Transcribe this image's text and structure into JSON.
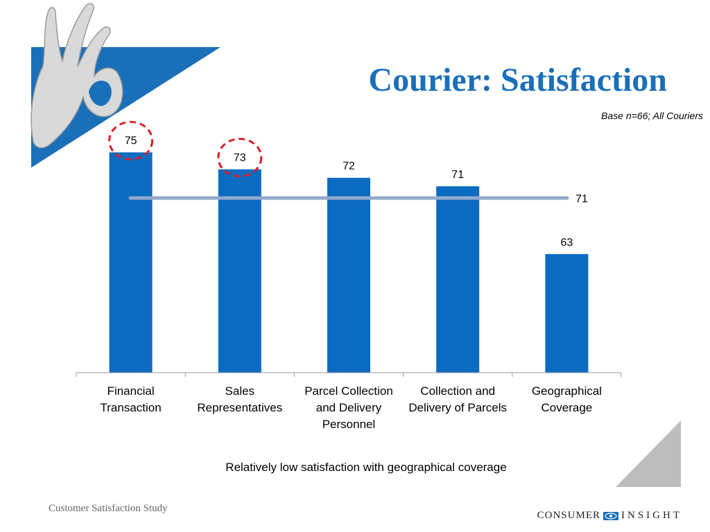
{
  "slide": {
    "title": "Courier: Satisfaction",
    "base_note": "Base n=66; All Couriers",
    "caption": "Relatively low satisfaction with geographical coverage",
    "footer_left": "Customer Satisfaction Study",
    "logo": {
      "word1": "CONSUMER",
      "word2": "INSIGHT",
      "icon": "eye-icon"
    },
    "decoration": {
      "hand_icon": "ok-hand-gesture-icon",
      "corner_icon": "grey-corner-triangle"
    }
  },
  "colors": {
    "bar": "#0b6bc1",
    "average_line": "#93a9cb",
    "title": "#1a6fb9",
    "highlight_circle": "#dd1e26",
    "banner": "#1a6fb9"
  },
  "chart_data": {
    "type": "bar",
    "categories": [
      [
        "Financial",
        "Transaction"
      ],
      [
        "Sales",
        "Representatives"
      ],
      [
        "Parcel Collection",
        "and Delivery",
        "Personnel"
      ],
      [
        "Collection and",
        "Delivery of Parcels"
      ],
      [
        "Geographical",
        "Coverage"
      ]
    ],
    "values": [
      75,
      73,
      72,
      71,
      63
    ],
    "data_labels": [
      "75",
      "73",
      "72",
      "71",
      "63"
    ],
    "average": {
      "value": 71,
      "label": "71"
    },
    "highlighted": [
      0,
      1
    ],
    "ylim": [
      49,
      78
    ],
    "grid": false,
    "legend": "none",
    "xlabel": "",
    "ylabel": ""
  }
}
